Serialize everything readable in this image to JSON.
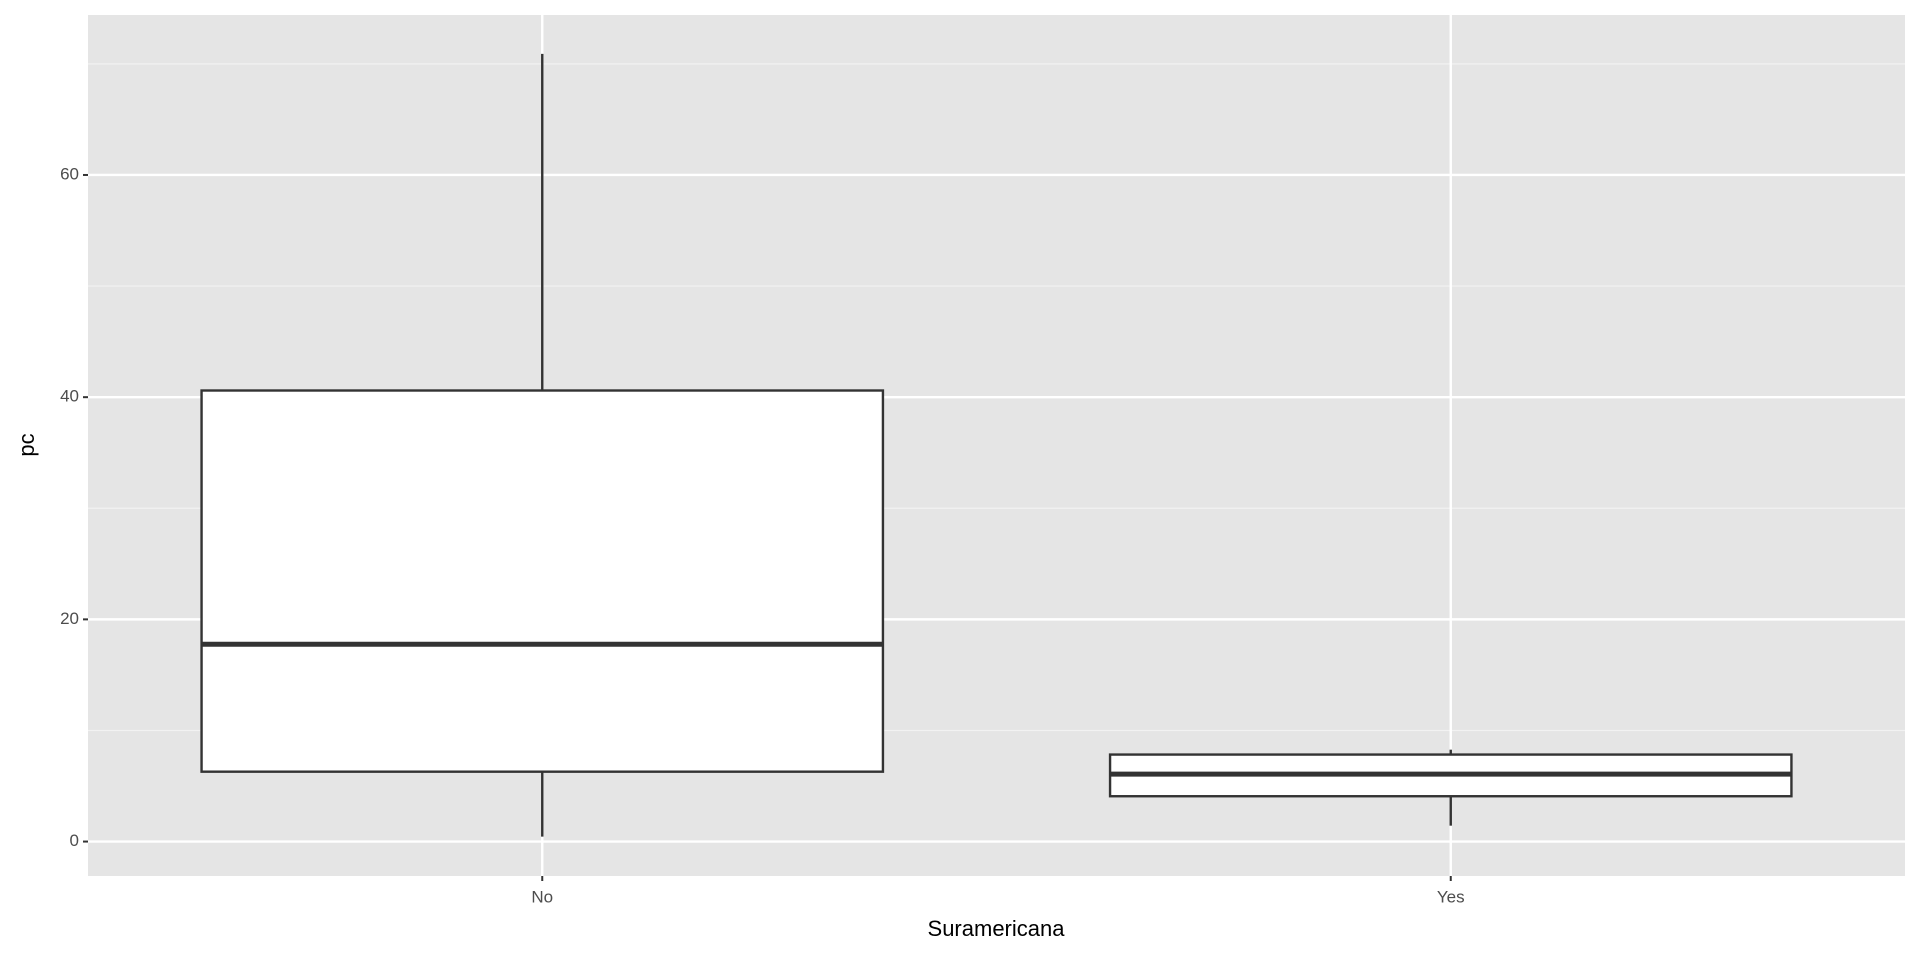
{
  "chart_data": {
    "type": "box",
    "x_label": "Suramericana",
    "y_label": "pc",
    "categories": [
      "No",
      "Yes"
    ],
    "boxes": [
      {
        "min": 0.44,
        "q1": 6.29,
        "median": 17.76,
        "q3": 40.6,
        "max": 70.9
      },
      {
        "min": 1.43,
        "q1": 4.08,
        "median": 6.07,
        "q3": 7.83,
        "max": 8.27
      }
    ],
    "ylim": [
      -3.1,
      74.4
    ],
    "yticks": [
      0,
      20,
      40,
      60
    ],
    "grid": true
  }
}
